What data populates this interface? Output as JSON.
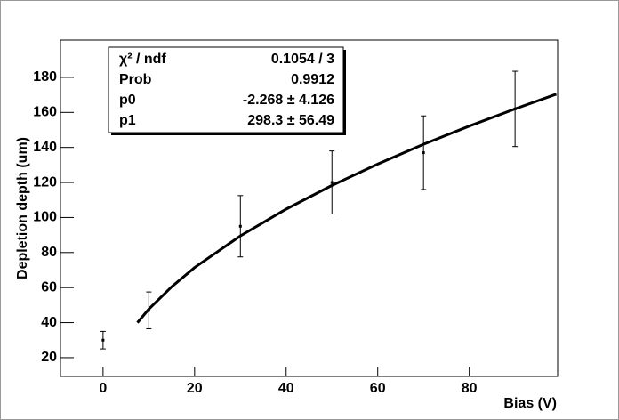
{
  "chart_data": {
    "type": "scatter",
    "x_label": "Bias (V)",
    "y_label": "Depletion depth (um)",
    "x": [
      0,
      10,
      30,
      50,
      70,
      90
    ],
    "values": [
      30,
      47,
      95,
      120,
      137,
      162
    ],
    "errors": [
      5,
      10.5,
      17.5,
      18,
      21,
      21.5
    ],
    "color": "#000000",
    "fit": {
      "x": [
        7.5,
        10,
        15,
        20,
        30,
        40,
        50,
        60,
        70,
        80,
        90,
        99
      ],
      "values": [
        40,
        47.7,
        60.5,
        71.4,
        89.5,
        104.8,
        118.3,
        130.5,
        141.8,
        152.2,
        162,
        170.4
      ]
    },
    "xlim": [
      -9.3,
      99.3
    ],
    "ylim": [
      9.3,
      201.3
    ],
    "xticks": [
      0,
      20,
      40,
      60,
      80
    ],
    "yticks": [
      20,
      40,
      60,
      80,
      100,
      120,
      140,
      160,
      180
    ],
    "stats": [
      [
        "χ² / ndf",
        "0.1054 / 3"
      ],
      [
        "Prob",
        "0.9912"
      ],
      [
        "p0",
        "-2.268 ± 4.126"
      ],
      [
        "p1",
        "298.3 ± 56.49"
      ]
    ]
  }
}
